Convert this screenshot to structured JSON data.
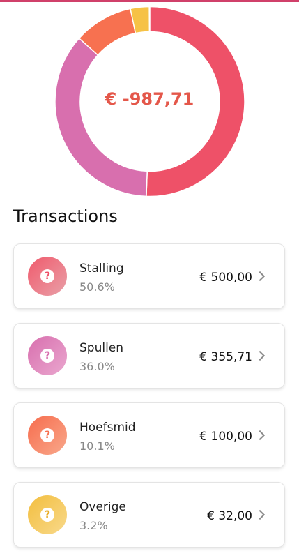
{
  "summary": {
    "total": "€ -987,71"
  },
  "section_title": "Transactions",
  "colors": {
    "stalling": "#ee5168",
    "spullen": "#d86fae",
    "hoefsmid": "#f77150",
    "overige": "#f6c246"
  },
  "donut": {
    "segments": [
      {
        "name": "Stalling",
        "fraction": 0.506,
        "color": "#ee5168"
      },
      {
        "name": "Spullen",
        "fraction": 0.36,
        "color": "#d86fae"
      },
      {
        "name": "Hoefsmid",
        "fraction": 0.101,
        "color": "#f77150"
      },
      {
        "name": "Overige",
        "fraction": 0.032,
        "color": "#f6c246"
      }
    ]
  },
  "transactions": [
    {
      "name": "Stalling",
      "percent": "50.6%",
      "amount": "€ 500,00",
      "icon": "question-icon"
    },
    {
      "name": "Spullen",
      "percent": "36.0%",
      "amount": "€ 355,71",
      "icon": "question-icon"
    },
    {
      "name": "Hoefsmid",
      "percent": "10.1%",
      "amount": "€ 100,00",
      "icon": "question-icon"
    },
    {
      "name": "Overige",
      "percent": "3.2%",
      "amount": "€ 32,00",
      "icon": "question-icon"
    }
  ]
}
